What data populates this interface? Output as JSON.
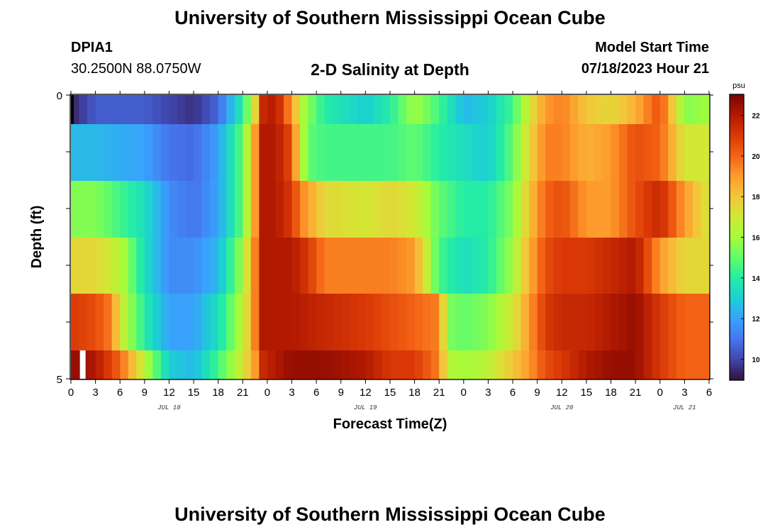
{
  "page": {
    "title": "University of Southern Mississippi Ocean Cube",
    "footer_title": "University of Southern Mississippi Ocean Cube",
    "station_id": "DPIA1",
    "station_coords": "30.2500N  88.0750W",
    "plot_subtitle": "2-D Salinity at Depth",
    "start_label": "Model Start Time",
    "start_value": "07/18/2023 Hour 21"
  },
  "colors": {
    "scale": [
      "#30123b",
      "#4145ab",
      "#4675ed",
      "#39a2fc",
      "#1bcfd4",
      "#24eca6",
      "#61fc6c",
      "#a4fc3b",
      "#d1e834",
      "#f3c63a",
      "#fe9b2d",
      "#f36315",
      "#d93806",
      "#b11901",
      "#7a0402"
    ]
  },
  "chart_data": {
    "type": "heatmap",
    "title": "2-D Salinity at Depth",
    "xlabel": "Forecast Time(Z)",
    "ylabel": "Depth (ft)",
    "x_tick_labels": [
      "0",
      "3",
      "6",
      "9",
      "12",
      "15",
      "18",
      "21",
      "0",
      "3",
      "6",
      "9",
      "12",
      "15",
      "18",
      "21",
      "0",
      "3",
      "6",
      "9",
      "12",
      "15",
      "18",
      "21",
      "0",
      "3",
      "6"
    ],
    "x_range_hours": [
      0,
      78
    ],
    "date_labels": [
      {
        "label": "JUL 18",
        "hour": 12
      },
      {
        "label": "JUL 19",
        "hour": 36
      },
      {
        "label": "JUL 20",
        "hour": 60
      },
      {
        "label": "JUL 21",
        "hour": 75
      }
    ],
    "y_tick_labels": [
      "0",
      "5"
    ],
    "y_range": [
      0,
      5
    ],
    "depth_levels": [
      0,
      1,
      2,
      3,
      4,
      5
    ],
    "colorbar": {
      "unit": "psu",
      "range": [
        9,
        23
      ],
      "tick_labels": [
        "10",
        "12",
        "14",
        "16",
        "18",
        "20",
        "22"
      ],
      "tick_values": [
        10,
        12,
        14,
        16,
        18,
        20,
        22
      ]
    },
    "series": [
      {
        "name": "depth 0",
        "key_hours": [
          0,
          3,
          9,
          12,
          15,
          18,
          21,
          22.5,
          23.5,
          25,
          27,
          28.5,
          31,
          36,
          39,
          42,
          45,
          48,
          51,
          54,
          56,
          58,
          60,
          63,
          66,
          69,
          72,
          75,
          78
        ],
        "values": [
          9.3,
          10.5,
          10.5,
          10.0,
          9.6,
          10.7,
          14.0,
          17.5,
          21.5,
          22.0,
          19.0,
          16.0,
          14.0,
          13.0,
          14.0,
          16.0,
          14.5,
          12.5,
          13.0,
          14.5,
          17.0,
          19.0,
          19.5,
          18.0,
          17.5,
          18.5,
          20.5,
          15.5,
          16.0
        ]
      },
      {
        "name": "depth 1",
        "key_hours": [
          0,
          3,
          9,
          12,
          15,
          18,
          21,
          22.5,
          23.5,
          25,
          27,
          28,
          29,
          31,
          36,
          39,
          42,
          45,
          48,
          51,
          54,
          56,
          58,
          60,
          63,
          66,
          69,
          72,
          75,
          78
        ],
        "values": [
          12.5,
          12.5,
          12.0,
          11.0,
          10.8,
          12.0,
          15.0,
          19.0,
          22.0,
          22.0,
          20.5,
          17.0,
          15.0,
          14.5,
          14.5,
          14.5,
          15.0,
          14.0,
          13.5,
          13.0,
          15.0,
          17.5,
          19.5,
          19.5,
          18.5,
          19.0,
          20.5,
          20.0,
          17.0,
          17.0
        ]
      },
      {
        "name": "depth 2",
        "key_hours": [
          0,
          3,
          9,
          12,
          15,
          18,
          21,
          22.5,
          23.5,
          25,
          27,
          28,
          31,
          36,
          39,
          42,
          45,
          48,
          51,
          54,
          56,
          58,
          60,
          63,
          66,
          69,
          72,
          75,
          78
        ],
        "values": [
          15.5,
          15.5,
          13.5,
          11.5,
          11.0,
          12.0,
          15.0,
          19.0,
          22.0,
          22.0,
          21.0,
          19.5,
          17.5,
          17.0,
          17.5,
          17.0,
          15.0,
          14.0,
          14.0,
          15.5,
          18.0,
          20.0,
          20.5,
          19.0,
          19.0,
          20.5,
          21.5,
          19.0,
          17.0
        ]
      },
      {
        "name": "depth 3",
        "key_hours": [
          0,
          3,
          6,
          9,
          12,
          15,
          18,
          21,
          22.5,
          23.5,
          25,
          27,
          29,
          31,
          36,
          39,
          42,
          45,
          48,
          51,
          54,
          56,
          58,
          60,
          63,
          66,
          69,
          72,
          75,
          78
        ],
        "values": [
          17.5,
          17.5,
          16.5,
          13.5,
          11.5,
          11.5,
          12.5,
          16.0,
          19.5,
          22.0,
          22.0,
          22.0,
          21.0,
          19.5,
          19.5,
          19.5,
          19.0,
          14.5,
          13.5,
          14.0,
          16.0,
          18.5,
          20.5,
          21.0,
          21.0,
          21.5,
          22.0,
          19.0,
          17.5,
          17.5
        ]
      },
      {
        "name": "depth 4",
        "key_hours": [
          0,
          3,
          5,
          6,
          9,
          12,
          15,
          18,
          21,
          22.5,
          23.5,
          25,
          27,
          31,
          36,
          39,
          42,
          45,
          46,
          48,
          51,
          54,
          56,
          58,
          60,
          63,
          66,
          69,
          72,
          75,
          78
        ],
        "values": [
          21.0,
          20.5,
          19.5,
          17.0,
          14.0,
          12.0,
          12.0,
          13.5,
          16.5,
          19.5,
          22.0,
          22.0,
          22.0,
          21.5,
          21.0,
          20.5,
          20.0,
          19.5,
          15.5,
          15.0,
          15.5,
          17.0,
          19.0,
          21.0,
          21.5,
          21.5,
          22.0,
          22.5,
          21.0,
          20.0,
          20.0
        ]
      },
      {
        "name": "depth 5",
        "key_hours": [
          0,
          1,
          3,
          6,
          9,
          12,
          15,
          18,
          21,
          22.5,
          23.5,
          25,
          27,
          31,
          36,
          39,
          42,
          45,
          46,
          48,
          51,
          54,
          56,
          58,
          60,
          63,
          66,
          69,
          72,
          75,
          78
        ],
        "values": [
          22.5,
          22.5,
          22.0,
          20.0,
          16.5,
          13.0,
          12.5,
          14.5,
          17.0,
          19.0,
          21.5,
          22.0,
          22.5,
          22.5,
          22.0,
          21.0,
          21.0,
          19.5,
          16.5,
          16.0,
          16.5,
          18.0,
          19.0,
          20.5,
          21.0,
          22.0,
          22.5,
          22.5,
          21.0,
          20.0,
          20.0
        ]
      }
    ]
  }
}
